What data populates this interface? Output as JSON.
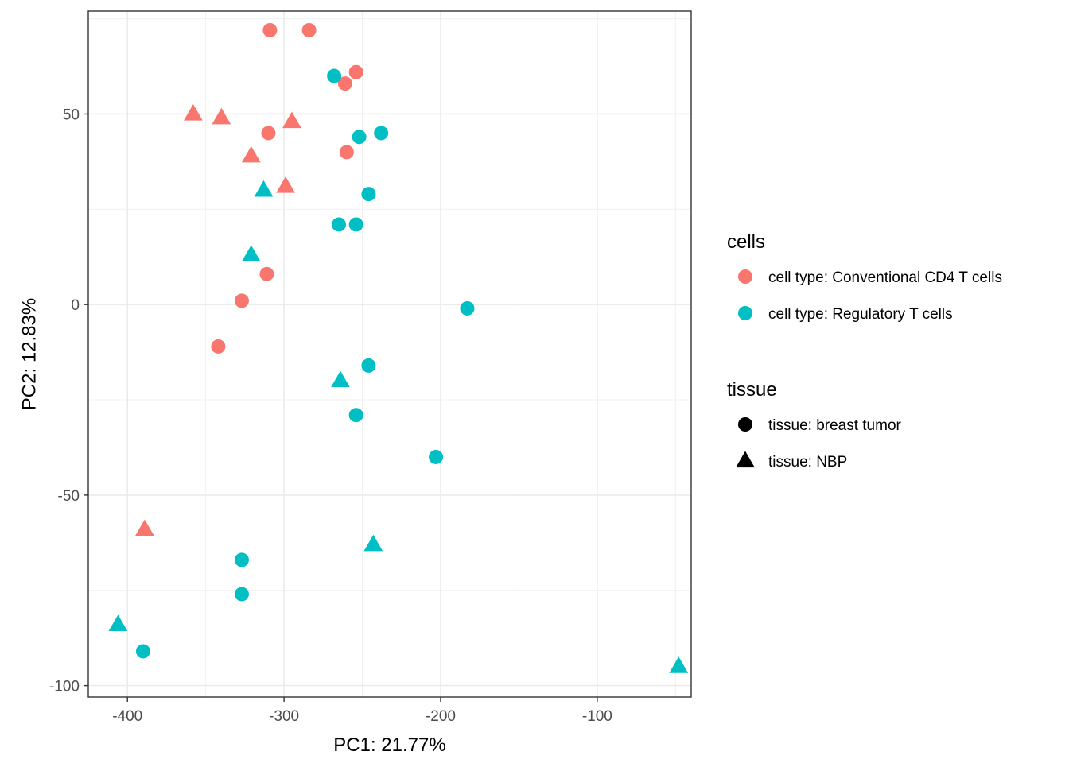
{
  "chart_data": {
    "type": "scatter",
    "xlabel": "PC1: 21.77%",
    "ylabel": "PC2: 12.83%",
    "xlim": [
      -425,
      -40
    ],
    "ylim": [
      -103,
      77
    ],
    "x_ticks": [
      -400,
      -300,
      -200,
      -100
    ],
    "x_tick_labels": [
      "-400",
      "-300",
      "-200",
      "-100"
    ],
    "y_ticks": [
      50,
      0,
      -50,
      -100
    ],
    "y_tick_labels": [
      "50",
      "0",
      "-50",
      "-100"
    ],
    "grid": true,
    "legend_position": "right",
    "color_legend": {
      "title": "cells",
      "entries": [
        {
          "key": "conv",
          "label": "cell type: Conventional CD4 T cells",
          "color": "#F8766D"
        },
        {
          "key": "treg",
          "label": "cell type: Regulatory T cells",
          "color": "#00BFC4"
        }
      ]
    },
    "shape_legend": {
      "title": "tissue",
      "entries": [
        {
          "key": "tumor",
          "label": "tissue: breast tumor",
          "shape": "circle"
        },
        {
          "key": "nbp",
          "label": "tissue: NBP",
          "shape": "triangle"
        }
      ]
    },
    "points": [
      {
        "x": -309,
        "y": 72,
        "cell": "conv",
        "tissue": "tumor"
      },
      {
        "x": -284,
        "y": 72,
        "cell": "conv",
        "tissue": "tumor"
      },
      {
        "x": -254,
        "y": 61,
        "cell": "conv",
        "tissue": "tumor"
      },
      {
        "x": -261,
        "y": 58,
        "cell": "conv",
        "tissue": "tumor"
      },
      {
        "x": -310,
        "y": 45,
        "cell": "conv",
        "tissue": "tumor"
      },
      {
        "x": -260,
        "y": 40,
        "cell": "conv",
        "tissue": "tumor"
      },
      {
        "x": -311,
        "y": 8,
        "cell": "conv",
        "tissue": "tumor"
      },
      {
        "x": -327,
        "y": 1,
        "cell": "conv",
        "tissue": "tumor"
      },
      {
        "x": -342,
        "y": -11,
        "cell": "conv",
        "tissue": "tumor"
      },
      {
        "x": -358,
        "y": 50,
        "cell": "conv",
        "tissue": "nbp"
      },
      {
        "x": -340,
        "y": 49,
        "cell": "conv",
        "tissue": "nbp"
      },
      {
        "x": -295,
        "y": 48,
        "cell": "conv",
        "tissue": "nbp"
      },
      {
        "x": -321,
        "y": 39,
        "cell": "conv",
        "tissue": "nbp"
      },
      {
        "x": -299,
        "y": 31,
        "cell": "conv",
        "tissue": "nbp"
      },
      {
        "x": -389,
        "y": -59,
        "cell": "conv",
        "tissue": "nbp"
      },
      {
        "x": -268,
        "y": 60,
        "cell": "treg",
        "tissue": "tumor"
      },
      {
        "x": -252,
        "y": 44,
        "cell": "treg",
        "tissue": "tumor"
      },
      {
        "x": -238,
        "y": 45,
        "cell": "treg",
        "tissue": "tumor"
      },
      {
        "x": -246,
        "y": 29,
        "cell": "treg",
        "tissue": "tumor"
      },
      {
        "x": -265,
        "y": 21,
        "cell": "treg",
        "tissue": "tumor"
      },
      {
        "x": -254,
        "y": 21,
        "cell": "treg",
        "tissue": "tumor"
      },
      {
        "x": -183,
        "y": -1,
        "cell": "treg",
        "tissue": "tumor"
      },
      {
        "x": -246,
        "y": -16,
        "cell": "treg",
        "tissue": "tumor"
      },
      {
        "x": -254,
        "y": -29,
        "cell": "treg",
        "tissue": "tumor"
      },
      {
        "x": -203,
        "y": -40,
        "cell": "treg",
        "tissue": "tumor"
      },
      {
        "x": -327,
        "y": -67,
        "cell": "treg",
        "tissue": "tumor"
      },
      {
        "x": -327,
        "y": -76,
        "cell": "treg",
        "tissue": "tumor"
      },
      {
        "x": -390,
        "y": -91,
        "cell": "treg",
        "tissue": "tumor"
      },
      {
        "x": -313,
        "y": 30,
        "cell": "treg",
        "tissue": "nbp"
      },
      {
        "x": -321,
        "y": 13,
        "cell": "treg",
        "tissue": "nbp"
      },
      {
        "x": -264,
        "y": -20,
        "cell": "treg",
        "tissue": "nbp"
      },
      {
        "x": -243,
        "y": -63,
        "cell": "treg",
        "tissue": "nbp"
      },
      {
        "x": -406,
        "y": -84,
        "cell": "treg",
        "tissue": "nbp"
      },
      {
        "x": -48,
        "y": -95,
        "cell": "treg",
        "tissue": "nbp"
      }
    ]
  }
}
